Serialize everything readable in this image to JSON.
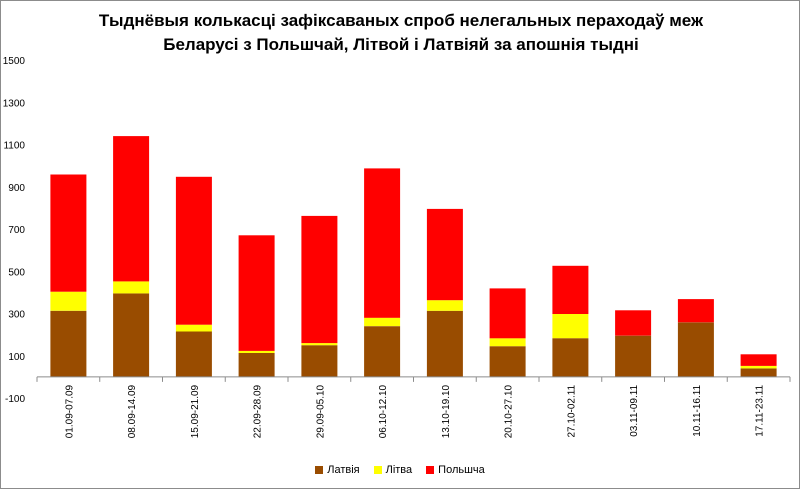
{
  "chart_data": {
    "type": "bar",
    "stacked": true,
    "title_lines": [
      "Тыднёвыя колькасці зафіксаваных спроб нелегальных пераходаў меж",
      "Беларусі з Польшчай, Літвой і Латвіяй за апошнія тыдні"
    ],
    "xlabel": "",
    "ylabel": "",
    "ylim": [
      -100,
      1500
    ],
    "yticks": [
      -100,
      100,
      300,
      500,
      700,
      900,
      1100,
      1300,
      1500
    ],
    "grid": false,
    "legend_position": "bottom",
    "categories": [
      "01.09-07.09",
      "08.09-14.09",
      "15.09-21.09",
      "22.09-28.09",
      "29.09-05.10",
      "06.10-12.10",
      "13.10-19.10",
      "20.10-27.10",
      "27.10-02.11",
      "03.11-09.11",
      "10.11-16.11",
      "17.11-23.11"
    ],
    "series": [
      {
        "name": "Латвія",
        "color": "#994c00",
        "values": [
          313,
          395,
          215,
          113,
          150,
          240,
          313,
          145,
          183,
          195,
          258,
          40
        ]
      },
      {
        "name": "Літва",
        "color": "#ffff00",
        "values": [
          90,
          57,
          32,
          10,
          10,
          40,
          50,
          38,
          115,
          0,
          0,
          12
        ]
      },
      {
        "name": "Польшча",
        "color": "#ff0000",
        "values": [
          555,
          688,
          700,
          547,
          602,
          707,
          432,
          236,
          228,
          120,
          110,
          55
        ]
      }
    ]
  }
}
